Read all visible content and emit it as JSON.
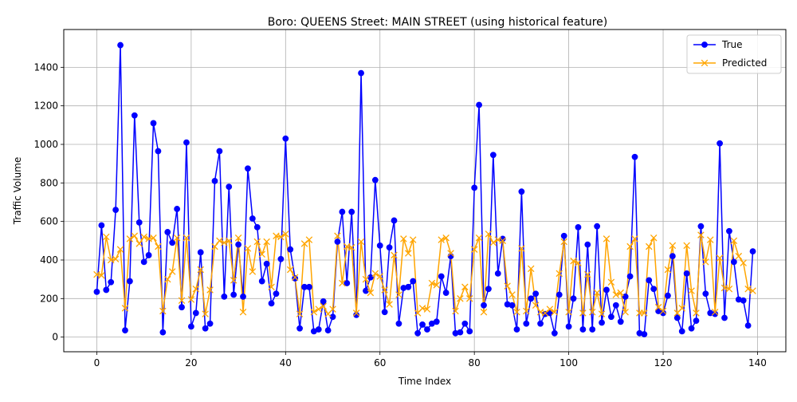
{
  "chart_data": {
    "type": "line",
    "title": "Boro: QUEENS Street: MAIN STREET (using historical feature)",
    "xlabel": "Time Index",
    "ylabel": "Traffic Volume",
    "xlim": [
      -7,
      146
    ],
    "ylim": [
      -76,
      1596
    ],
    "xticks": [
      0,
      20,
      40,
      60,
      80,
      100,
      120,
      140
    ],
    "yticks": [
      0,
      200,
      400,
      600,
      800,
      1000,
      1200,
      1400
    ],
    "grid": true,
    "legend_position": "top-right",
    "series": [
      {
        "name": "True",
        "color": "#0000ff",
        "marker": "circle",
        "values": [
          235,
          580,
          245,
          285,
          660,
          1515,
          35,
          290,
          1150,
          595,
          390,
          425,
          1110,
          965,
          25,
          545,
          490,
          665,
          155,
          1010,
          55,
          125,
          440,
          45,
          70,
          810,
          965,
          210,
          780,
          220,
          480,
          210,
          875,
          615,
          570,
          290,
          380,
          175,
          225,
          405,
          1030,
          455,
          305,
          45,
          260,
          260,
          30,
          40,
          185,
          35,
          105,
          495,
          650,
          280,
          650,
          115,
          1370,
          240,
          310,
          815,
          475,
          130,
          465,
          605,
          70,
          255,
          260,
          290,
          20,
          65,
          40,
          70,
          80,
          315,
          230,
          420,
          20,
          25,
          70,
          30,
          775,
          1205,
          165,
          250,
          945,
          330,
          510,
          170,
          165,
          40,
          755,
          70,
          200,
          225,
          70,
          120,
          125,
          20,
          220,
          525,
          55,
          200,
          570,
          40,
          480,
          40,
          575,
          75,
          245,
          105,
          165,
          80,
          210,
          315,
          935,
          20,
          15,
          295,
          250,
          135,
          125,
          215,
          420,
          100,
          30,
          330,
          45,
          85,
          575,
          225,
          125,
          120,
          1005,
          100,
          550,
          390,
          195,
          190,
          60,
          445
        ]
      },
      {
        "name": "Predicted",
        "color": "#ffa500",
        "marker": "x",
        "values": [
          325,
          320,
          520,
          400,
          405,
          455,
          150,
          510,
          525,
          485,
          520,
          510,
          515,
          470,
          135,
          300,
          340,
          515,
          190,
          515,
          195,
          250,
          350,
          120,
          245,
          470,
          500,
          490,
          500,
          295,
          515,
          130,
          460,
          340,
          495,
          430,
          495,
          260,
          525,
          520,
          535,
          350,
          310,
          120,
          485,
          505,
          130,
          145,
          160,
          120,
          145,
          525,
          280,
          470,
          465,
          125,
          495,
          300,
          230,
          330,
          315,
          245,
          170,
          425,
          220,
          510,
          435,
          505,
          125,
          150,
          145,
          280,
          270,
          505,
          515,
          435,
          135,
          200,
          260,
          200,
          455,
          515,
          130,
          535,
          490,
          505,
          500,
          265,
          220,
          130,
          460,
          135,
          355,
          165,
          130,
          125,
          145,
          130,
          330,
          495,
          130,
          395,
          385,
          125,
          325,
          130,
          230,
          120,
          510,
          285,
          220,
          230,
          130,
          470,
          510,
          125,
          125,
          470,
          515,
          155,
          135,
          350,
          475,
          125,
          150,
          475,
          240,
          125,
          530,
          390,
          505,
          130,
          410,
          255,
          250,
          500,
          420,
          385,
          250,
          240
        ]
      }
    ]
  }
}
